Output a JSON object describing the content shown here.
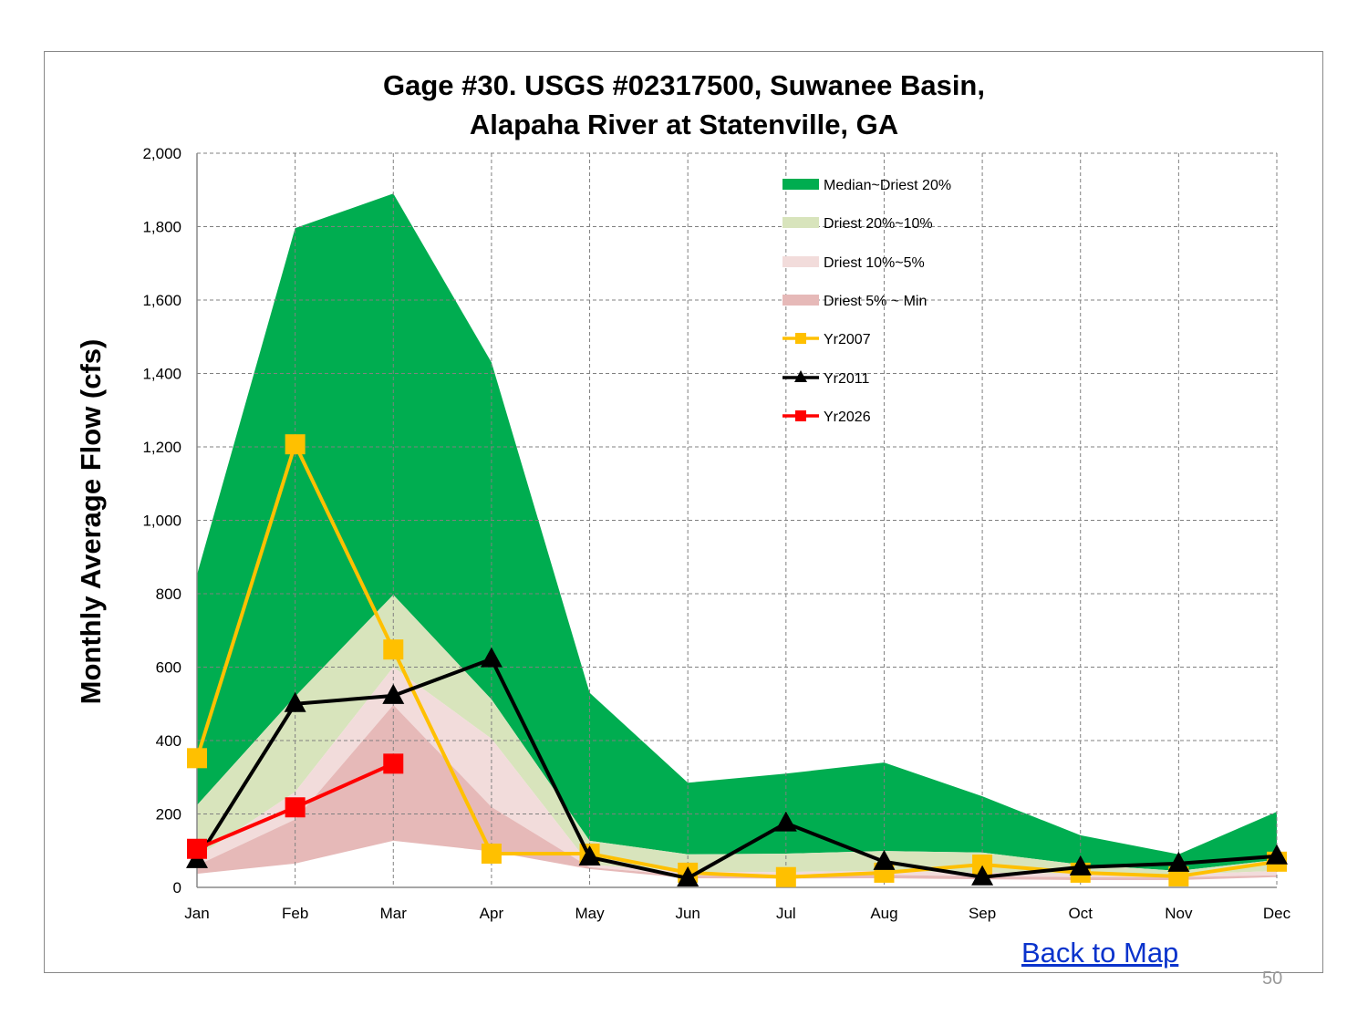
{
  "chart_data": {
    "type": "area",
    "title": "Gage #30. USGS #02317500, Suwanee Basin, Alapaha River at Statenville, GA",
    "title_lines": [
      "Gage #30. USGS #02317500, Suwanee Basin,",
      "Alapaha River at Statenville, GA"
    ],
    "xlabel": "",
    "ylabel": "Monthly Average Flow (cfs)",
    "categories": [
      "Jan",
      "Feb",
      "Mar",
      "Apr",
      "May",
      "Jun",
      "Jul",
      "Aug",
      "Sep",
      "Oct",
      "Nov",
      "Dec"
    ],
    "ylim": [
      0,
      2000
    ],
    "yticks": [
      "0",
      "200",
      "400",
      "600",
      "800",
      "1,000",
      "1,200",
      "1,400",
      "1,600",
      "1,800",
      "2,000"
    ],
    "grid": true,
    "legend_placement": "top-right",
    "bands": [
      {
        "name": "Median~Driest 20%",
        "color": "#00ad50",
        "upper": [
          852,
          1796,
          1890,
          1430,
          530,
          285,
          310,
          340,
          248,
          142,
          90,
          206
        ],
        "lower": [
          224,
          520,
          797,
          512,
          127,
          90,
          92,
          99,
          95,
          62,
          45,
          75
        ]
      },
      {
        "name": "Driest 20%~10%",
        "color": "#d8e4bc",
        "upper": [
          224,
          520,
          797,
          512,
          127,
          90,
          92,
          99,
          95,
          62,
          45,
          75
        ],
        "lower": [
          82,
          260,
          600,
          405,
          62,
          42,
          42,
          45,
          40,
          38,
          35,
          45
        ]
      },
      {
        "name": "Driest 10%~5%",
        "color": "#f2dcdb",
        "upper": [
          82,
          260,
          600,
          405,
          62,
          42,
          42,
          45,
          40,
          38,
          35,
          45
        ],
        "lower": [
          60,
          185,
          497,
          219,
          55,
          32,
          32,
          34,
          30,
          28,
          28,
          33
        ]
      },
      {
        "name": "Driest 5% ~ Min",
        "color": "#e6b9b8",
        "upper": [
          60,
          185,
          497,
          219,
          55,
          32,
          32,
          34,
          30,
          28,
          28,
          33
        ],
        "lower": [
          37,
          65,
          127,
          98,
          50,
          25,
          24,
          25,
          22,
          20,
          20,
          28
        ]
      }
    ],
    "series": [
      {
        "name": "Yr2007",
        "color": "#ffc000",
        "marker": "square",
        "values": [
          352,
          1207,
          648,
          92,
          92,
          40,
          28,
          40,
          62,
          40,
          30,
          70
        ]
      },
      {
        "name": "Yr2011",
        "color": "#000000",
        "marker": "triangle",
        "values": [
          75,
          500,
          522,
          622,
          82,
          25,
          175,
          70,
          28,
          55,
          65,
          85
        ]
      },
      {
        "name": "Yr2026",
        "color": "#ff0000",
        "marker": "square",
        "values": [
          105,
          218,
          337,
          null,
          null,
          null,
          null,
          null,
          null,
          null,
          null,
          null
        ]
      }
    ]
  },
  "links": {
    "back_to_map": "Back to Map"
  },
  "page_number": "50"
}
